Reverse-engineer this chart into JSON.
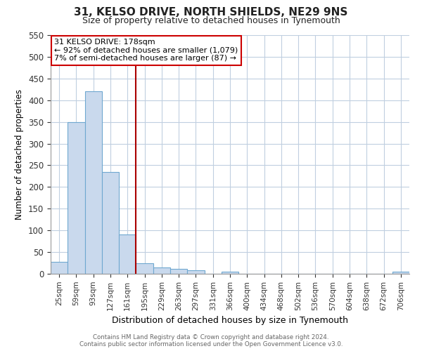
{
  "title": "31, KELSO DRIVE, NORTH SHIELDS, NE29 9NS",
  "subtitle": "Size of property relative to detached houses in Tynemouth",
  "xlabel": "Distribution of detached houses by size in Tynemouth",
  "ylabel": "Number of detached properties",
  "bar_labels": [
    "25sqm",
    "59sqm",
    "93sqm",
    "127sqm",
    "161sqm",
    "195sqm",
    "229sqm",
    "263sqm",
    "297sqm",
    "331sqm",
    "366sqm",
    "400sqm",
    "434sqm",
    "468sqm",
    "502sqm",
    "536sqm",
    "570sqm",
    "604sqm",
    "638sqm",
    "672sqm",
    "706sqm"
  ],
  "bar_values": [
    28,
    350,
    420,
    235,
    90,
    25,
    15,
    12,
    8,
    0,
    5,
    0,
    0,
    0,
    0,
    0,
    0,
    0,
    0,
    0,
    5
  ],
  "bar_color": "#c9d9ed",
  "bar_edge_color": "#6fa8d0",
  "vertical_line_x": 4.5,
  "vertical_line_color": "#aa0000",
  "annotation_line1": "31 KELSO DRIVE: 178sqm",
  "annotation_line2": "← 92% of detached houses are smaller (1,079)",
  "annotation_line3": "7% of semi-detached houses are larger (87) →",
  "annotation_box_color": "#ffffff",
  "annotation_box_edge": "#cc0000",
  "ylim": [
    0,
    550
  ],
  "yticks": [
    0,
    50,
    100,
    150,
    200,
    250,
    300,
    350,
    400,
    450,
    500,
    550
  ],
  "footer1": "Contains HM Land Registry data © Crown copyright and database right 2024.",
  "footer2": "Contains public sector information licensed under the Open Government Licence v3.0.",
  "bg_color": "#ffffff",
  "grid_color": "#c0cfe0",
  "title_fontsize": 11,
  "subtitle_fontsize": 9
}
